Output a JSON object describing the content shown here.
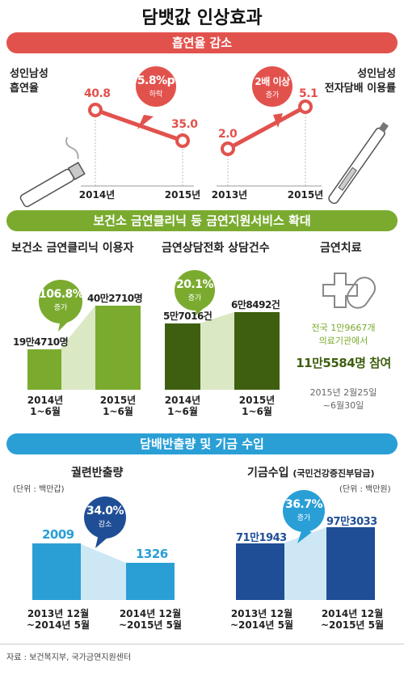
{
  "title": "담뱃값 인상효과",
  "source": "자료 : 보건복지부, 국가금연지원센터",
  "colors": {
    "red": "#e2524d",
    "green": "#7aab2f",
    "darkgreen": "#3f5f10",
    "blue": "#2a9fd6",
    "navy": "#1f4e96",
    "lightblue": "#cde7f5",
    "lightgreen": "#dbe8c4"
  },
  "section1": {
    "band": "흡연율 감소",
    "left_label_1": "성인남성",
    "left_label_2": "흡연율",
    "right_label_1": "성인남성",
    "right_label_2": "전자담배 이용률",
    "left_bubble_big": "5.8%p",
    "left_bubble_small": "하락",
    "right_bubble_big": "2배 이상",
    "right_bubble_small": "증가",
    "left_x": [
      "2014년",
      "2015년"
    ],
    "right_x": [
      "2013년",
      "2015년"
    ],
    "left_vals": [
      "40.8",
      "35.0"
    ],
    "right_vals": [
      "2.0",
      "5.1"
    ]
  },
  "section2": {
    "band": "보건소 금연클리닉 등 금연지원서비스 확대",
    "sub1": "보건소 금연클리닉 이용자",
    "sub2": "금연상담전화 상담건수",
    "sub3": "금연치료",
    "bubble1_big": "106.8%",
    "bubble1_small": "증가",
    "bubble2_big": "20.1%",
    "bubble2_small": "증가",
    "v1a": "19만4710명",
    "v1b": "40만2710명",
    "v2a": "5만7016건",
    "v2b": "6만8492건",
    "x1a_1": "2014년",
    "x1a_2": "1~6월",
    "x1b_1": "2015년",
    "x1b_2": "1~6월",
    "x2a_1": "2014년",
    "x2a_2": "1~6월",
    "x2b_1": "2015년",
    "x2b_2": "1~6월",
    "treat_1": "전국 1만9667개",
    "treat_2": "의료기관에서",
    "treat_big": "11만5584명 참여",
    "treat_date_1": "2015년 2월25일",
    "treat_date_2": "~6월30일"
  },
  "section3": {
    "band": "담배반출량 및 기금 수입",
    "sub1": "궐련반출량",
    "sub2": "기금수입",
    "sub2_paren": "(국민건강증진부담금)",
    "unit1": "(단위 : 백만갑)",
    "unit2": "(단위 : 백만원)",
    "bubble1_big": "34.0%",
    "bubble1_small": "감소",
    "bubble2_big": "36.7%",
    "bubble2_small": "증가",
    "v1a": "2009",
    "v1b": "1326",
    "v2a": "71만1943",
    "v2b": "97만3033",
    "xa_1": "2013년 12월",
    "xa_2": "~2014년 5월",
    "xb_1": "2014년 12월",
    "xb_2": "~2015년 5월",
    "xc_1": "2013년 12월",
    "xc_2": "~2014년 5월",
    "xd_1": "2014년 12월",
    "xd_2": "~2015년 5월"
  },
  "chart_data": [
    {
      "type": "line",
      "categories": [
        "2014년",
        "2015년"
      ],
      "series": [
        {
          "values": [
            40.8,
            35.0
          ]
        }
      ],
      "title": "",
      "ylabel": "성인남성 흡연율"
    },
    {
      "type": "line",
      "categories": [
        "2013년",
        "2015년"
      ],
      "series": [
        {
          "values": [
            2.0,
            5.1
          ]
        }
      ],
      "title": "",
      "ylabel": "성인남성 전자담배 이용률"
    },
    {
      "type": "bar",
      "categories": [
        "2014년 1~6월",
        "2015년 1~6월"
      ],
      "values": [
        194710,
        402710
      ],
      "title": "보건소 금연클리닉 이용자"
    },
    {
      "type": "bar",
      "categories": [
        "2014년 1~6월",
        "2015년 1~6월"
      ],
      "values": [
        57016,
        68492
      ],
      "title": "금연상담전화 상담건수"
    },
    {
      "type": "bar",
      "categories": [
        "2013년 12월~2014년 5월",
        "2014년 12월~2015년 5월"
      ],
      "values": [
        2009,
        1326
      ],
      "title": "궐련반출량",
      "ylabel": "(단위 : 백만갑)"
    },
    {
      "type": "bar",
      "categories": [
        "2013년 12월~2014년 5월",
        "2014년 12월~2015년 5월"
      ],
      "values": [
        711943,
        973033
      ],
      "title": "기금수입",
      "ylabel": "(단위 : 백만원)"
    }
  ]
}
